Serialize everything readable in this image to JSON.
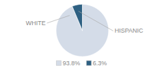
{
  "chart_data": {
    "type": "pie",
    "categories": [
      "WHITE",
      "HISPANIC"
    ],
    "values": [
      93.8,
      6.3
    ],
    "value_labels": [
      "93.8%",
      "6.3%"
    ],
    "colors": [
      "#d4dce8",
      "#2e6082"
    ],
    "legend": "bottom",
    "tick_labels": false
  }
}
